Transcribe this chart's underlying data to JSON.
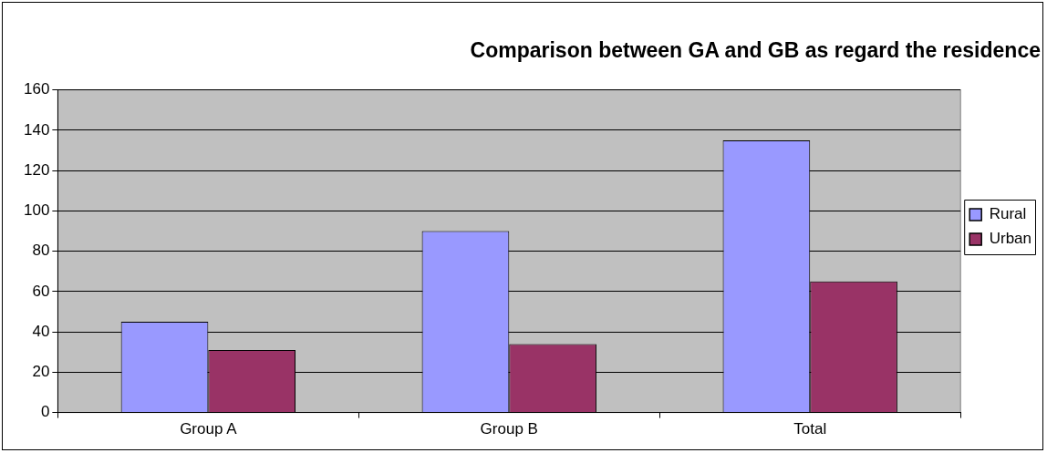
{
  "chart_data": {
    "type": "bar",
    "title": "Comparison between GA and GB as regard the residence",
    "categories": [
      "Group A",
      "Group B",
      "Total"
    ],
    "series": [
      {
        "name": "Rural",
        "color": "#9999ff",
        "values": [
          45,
          90,
          135
        ]
      },
      {
        "name": "Urban",
        "color": "#993366",
        "values": [
          31,
          34,
          65
        ]
      }
    ],
    "ylim": [
      0,
      160
    ],
    "yticks": [
      0,
      20,
      40,
      60,
      80,
      100,
      120,
      140,
      160
    ],
    "grid": "y",
    "legend": "right"
  }
}
